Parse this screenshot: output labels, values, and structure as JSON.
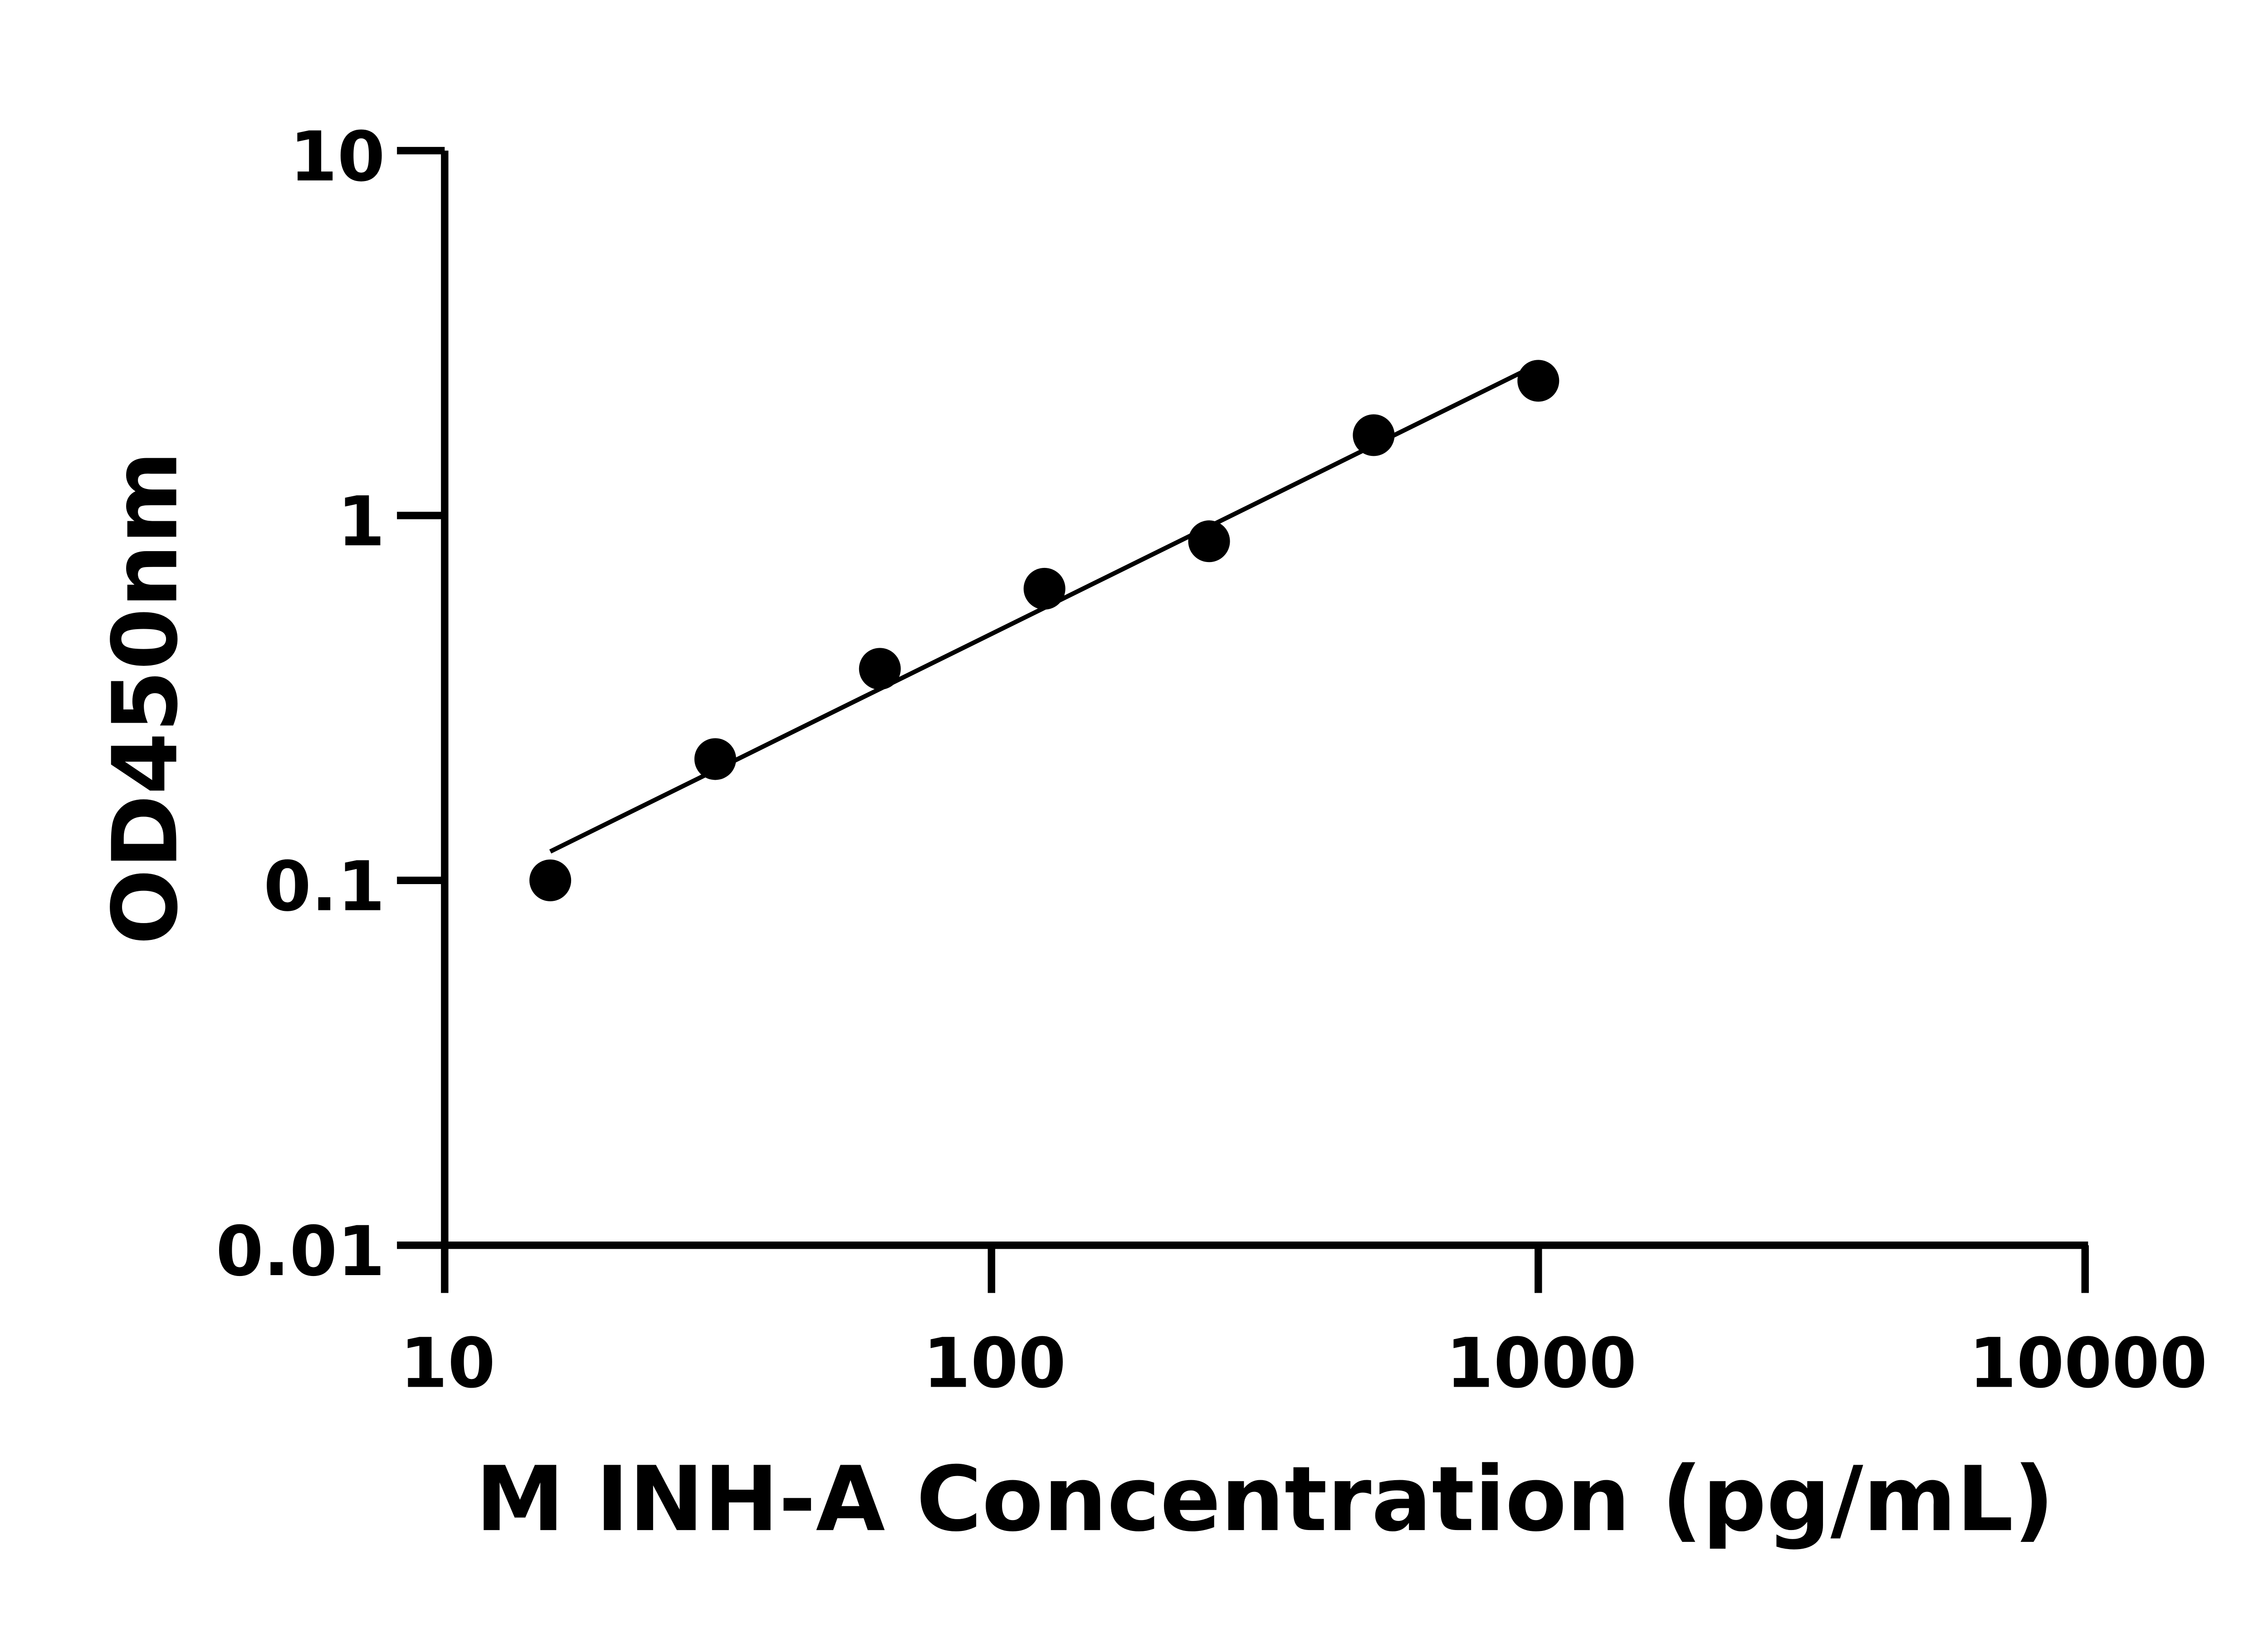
{
  "chart_data": {
    "type": "scatter",
    "title": "",
    "xlabel": "M INH-A Concentration (pg/mL)",
    "ylabel": "OD450nm",
    "x_scale": "log",
    "y_scale": "log",
    "xlim": [
      10,
      10000
    ],
    "ylim": [
      0.01,
      10
    ],
    "x_ticks": [
      "10",
      "100",
      "1000",
      "10000"
    ],
    "y_ticks": [
      "0.01",
      "0.1",
      "1",
      "10"
    ],
    "grid": false,
    "fit_line": true,
    "points": [
      {
        "x": 15.6,
        "y": 0.1
      },
      {
        "x": 31.25,
        "y": 0.215
      },
      {
        "x": 62.5,
        "y": 0.38
      },
      {
        "x": 125,
        "y": 0.63
      },
      {
        "x": 250,
        "y": 0.85
      },
      {
        "x": 500,
        "y": 1.66
      },
      {
        "x": 1000,
        "y": 2.34
      }
    ],
    "colors": {
      "marker": "#000000",
      "line": "#000000",
      "axis": "#000000"
    }
  }
}
